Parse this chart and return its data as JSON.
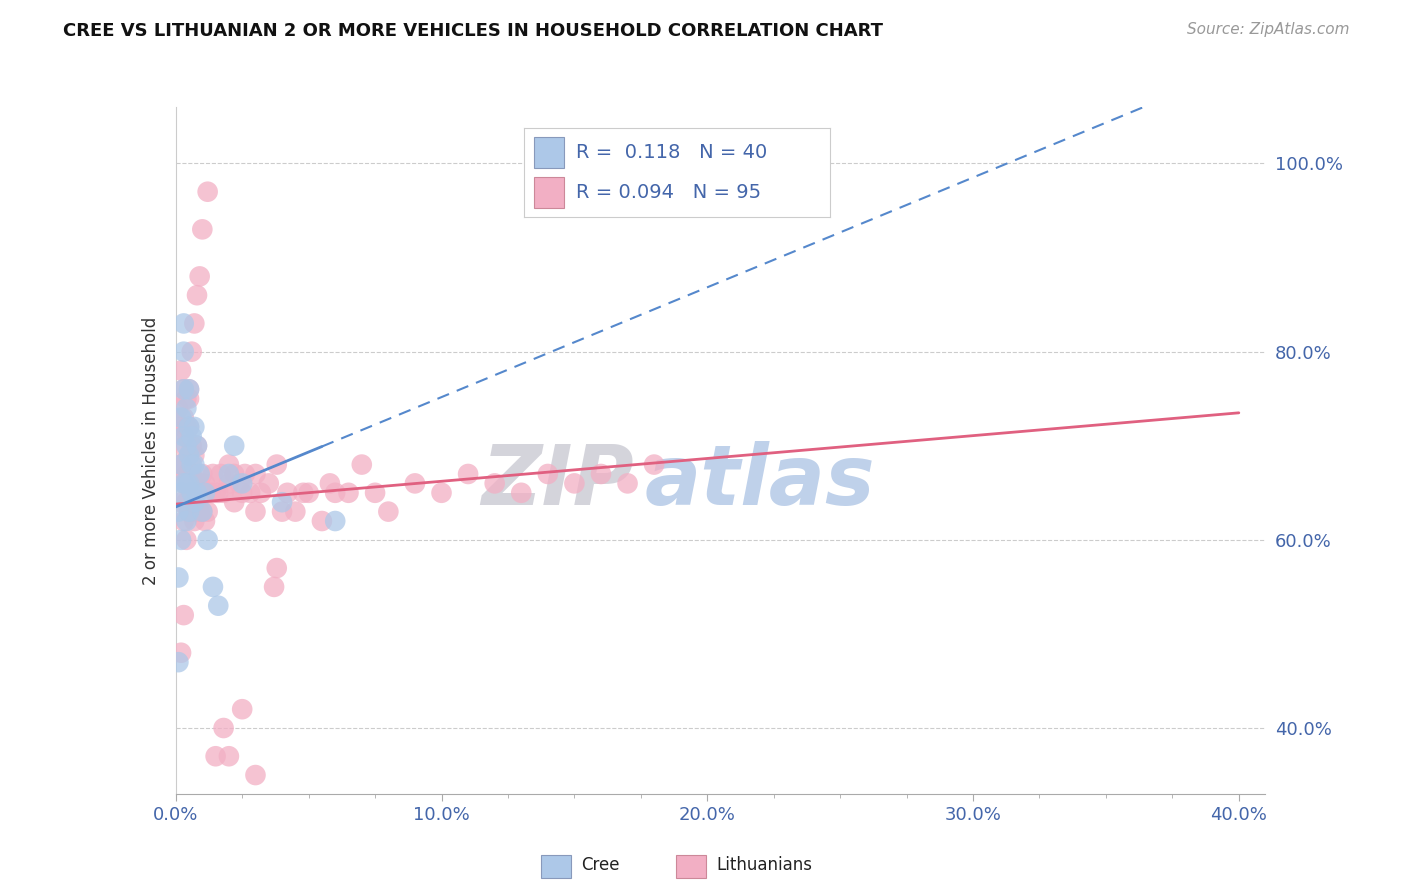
{
  "title": "CREE VS LITHUANIAN 2 OR MORE VEHICLES IN HOUSEHOLD CORRELATION CHART",
  "source": "Source: ZipAtlas.com",
  "xlim": [
    0.0,
    0.41
  ],
  "ylim": [
    0.33,
    1.06
  ],
  "xticks": [
    0.0,
    0.1,
    0.2,
    0.3,
    0.4
  ],
  "xtick_labels": [
    "0.0%",
    "10.0%",
    "20.0%",
    "30.0%",
    "40.0%"
  ],
  "yticks": [
    0.4,
    0.6,
    0.8,
    1.0
  ],
  "ytick_labels": [
    "40.0%",
    "60.0%",
    "80.0%",
    "100.0%"
  ],
  "blue_color": "#adc8e8",
  "pink_color": "#f2afc4",
  "blue_line_color": "#5588cc",
  "pink_line_color": "#e06080",
  "legend_r1": "0.118",
  "legend_n1": "40",
  "legend_r2": "0.094",
  "legend_n2": "95",
  "watermark_zip": "ZIP",
  "watermark_atlas": "atlas",
  "cree_x": [
    0.001,
    0.001,
    0.001,
    0.002,
    0.002,
    0.002,
    0.002,
    0.003,
    0.003,
    0.003,
    0.003,
    0.003,
    0.004,
    0.004,
    0.004,
    0.004,
    0.005,
    0.005,
    0.005,
    0.005,
    0.005,
    0.006,
    0.006,
    0.006,
    0.007,
    0.007,
    0.007,
    0.008,
    0.008,
    0.009,
    0.01,
    0.011,
    0.012,
    0.014,
    0.016,
    0.02,
    0.022,
    0.025,
    0.04,
    0.06
  ],
  "cree_y": [
    0.47,
    0.56,
    0.63,
    0.6,
    0.65,
    0.68,
    0.73,
    0.66,
    0.71,
    0.76,
    0.8,
    0.83,
    0.62,
    0.66,
    0.7,
    0.74,
    0.63,
    0.66,
    0.69,
    0.72,
    0.76,
    0.65,
    0.68,
    0.71,
    0.64,
    0.68,
    0.72,
    0.65,
    0.7,
    0.67,
    0.63,
    0.65,
    0.6,
    0.55,
    0.53,
    0.67,
    0.7,
    0.66,
    0.64,
    0.62
  ],
  "lith_x": [
    0.001,
    0.001,
    0.002,
    0.002,
    0.002,
    0.002,
    0.003,
    0.003,
    0.003,
    0.003,
    0.003,
    0.004,
    0.004,
    0.004,
    0.004,
    0.004,
    0.005,
    0.005,
    0.005,
    0.005,
    0.005,
    0.006,
    0.006,
    0.006,
    0.007,
    0.007,
    0.007,
    0.008,
    0.008,
    0.008,
    0.009,
    0.009,
    0.01,
    0.01,
    0.011,
    0.011,
    0.012,
    0.013,
    0.014,
    0.015,
    0.016,
    0.017,
    0.018,
    0.02,
    0.02,
    0.022,
    0.022,
    0.024,
    0.025,
    0.026,
    0.028,
    0.03,
    0.03,
    0.032,
    0.035,
    0.037,
    0.038,
    0.038,
    0.04,
    0.042,
    0.045,
    0.048,
    0.05,
    0.055,
    0.058,
    0.06,
    0.065,
    0.07,
    0.075,
    0.08,
    0.09,
    0.1,
    0.11,
    0.12,
    0.13,
    0.14,
    0.15,
    0.16,
    0.17,
    0.18,
    0.002,
    0.003,
    0.004,
    0.005,
    0.006,
    0.007,
    0.008,
    0.009,
    0.01,
    0.012,
    0.015,
    0.018,
    0.02,
    0.025,
    0.03
  ],
  "lith_y": [
    0.68,
    0.74,
    0.64,
    0.68,
    0.72,
    0.78,
    0.62,
    0.66,
    0.7,
    0.73,
    0.76,
    0.6,
    0.64,
    0.67,
    0.71,
    0.75,
    0.63,
    0.66,
    0.69,
    0.72,
    0.76,
    0.63,
    0.67,
    0.7,
    0.62,
    0.65,
    0.69,
    0.63,
    0.66,
    0.7,
    0.63,
    0.66,
    0.63,
    0.67,
    0.62,
    0.66,
    0.63,
    0.65,
    0.67,
    0.65,
    0.65,
    0.67,
    0.65,
    0.66,
    0.68,
    0.64,
    0.67,
    0.66,
    0.65,
    0.67,
    0.65,
    0.63,
    0.67,
    0.65,
    0.66,
    0.55,
    0.68,
    0.57,
    0.63,
    0.65,
    0.63,
    0.65,
    0.65,
    0.62,
    0.66,
    0.65,
    0.65,
    0.68,
    0.65,
    0.63,
    0.66,
    0.65,
    0.67,
    0.66,
    0.65,
    0.67,
    0.66,
    0.67,
    0.66,
    0.68,
    0.48,
    0.52,
    0.72,
    0.75,
    0.8,
    0.83,
    0.86,
    0.88,
    0.93,
    0.97,
    0.37,
    0.4,
    0.37,
    0.42,
    0.35
  ]
}
